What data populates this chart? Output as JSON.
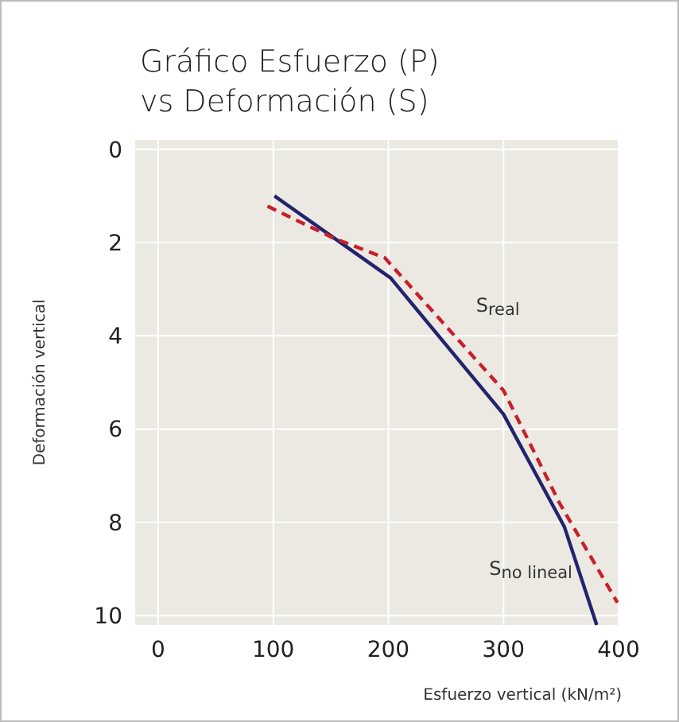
{
  "chart_data": {
    "type": "line",
    "title": "Gráfico Esfuerzo (P)\nvs Deformación (S)",
    "xlabel": "Esfuerzo vertical (kN/m²)",
    "ylabel": "Deformación vertical",
    "xlim": [
      -20,
      400
    ],
    "xticks": [
      0,
      100,
      200,
      300,
      400
    ],
    "ylim": [
      10.2,
      -0.2
    ],
    "yticks": [
      0,
      2,
      4,
      6,
      8,
      10
    ],
    "grid": true,
    "series": [
      {
        "name": "S$_{no lineal}$",
        "color": "#23236e",
        "line_style": "solid",
        "x": [
          101,
          202,
          300,
          353,
          381
        ],
        "values": [
          1.0,
          2.76,
          5.68,
          8.1,
          10.2
        ]
      },
      {
        "name": "S$_{real}$",
        "color": "#c8202a",
        "line_style": "dashed",
        "x": [
          95,
          152,
          197,
          300,
          349,
          399
        ],
        "values": [
          1.22,
          1.9,
          2.33,
          5.17,
          7.6,
          9.72
        ]
      }
    ]
  }
}
